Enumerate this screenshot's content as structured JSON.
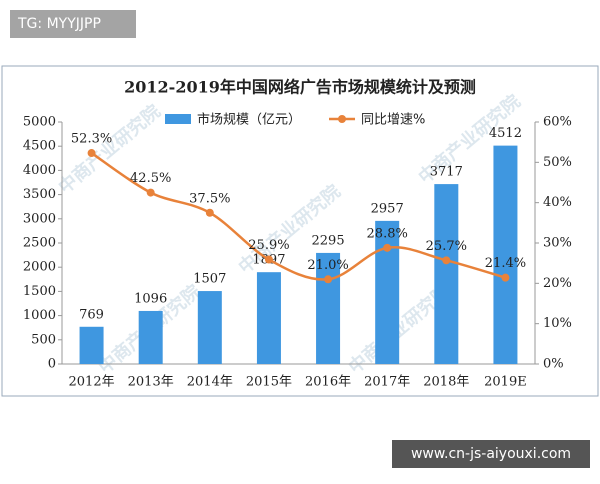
{
  "header": {
    "tag": "TG: MYYJJPP"
  },
  "footer": {
    "site": "www.cn-js-aiyouxi.com"
  },
  "watermark": "中商产业研究院",
  "chart_data": {
    "type": "bar-line",
    "title": "2012-2019年中国网络广告市场规模统计及预测",
    "categories": [
      "2012年",
      "2013年",
      "2014年",
      "2015年",
      "2016年",
      "2017年",
      "2018年",
      "2019E"
    ],
    "series": [
      {
        "name": "市场规模（亿元）",
        "type": "bar",
        "color": "#3f97e0",
        "values": [
          769,
          1096,
          1507,
          1897,
          2295,
          2957,
          3717,
          4512
        ]
      },
      {
        "name": "同比增速%",
        "type": "line",
        "axis": "y2",
        "color": "#e8823a",
        "values": [
          52.3,
          42.5,
          37.5,
          25.9,
          21.0,
          28.8,
          25.7,
          21.4
        ],
        "value_labels": [
          "52.3%",
          "42.5%",
          "37.5%",
          "25.9%",
          "21.0%",
          "28.8%",
          "25.7%",
          "21.4%"
        ]
      }
    ],
    "ylim": [
      0,
      5000
    ],
    "yticks": [
      0,
      500,
      1000,
      1500,
      2000,
      2500,
      3000,
      3500,
      4000,
      4500,
      5000
    ],
    "y2lim": [
      0,
      60
    ],
    "y2ticks": [
      {
        "value": 0,
        "label": "0%"
      },
      {
        "value": 10,
        "label": "10%"
      },
      {
        "value": 20,
        "label": "20%"
      },
      {
        "value": 30,
        "label": "30%"
      },
      {
        "value": 40,
        "label": "40%"
      },
      {
        "value": 50,
        "label": "50%"
      },
      {
        "value": 60,
        "label": "60%"
      }
    ],
    "legend": "top"
  }
}
